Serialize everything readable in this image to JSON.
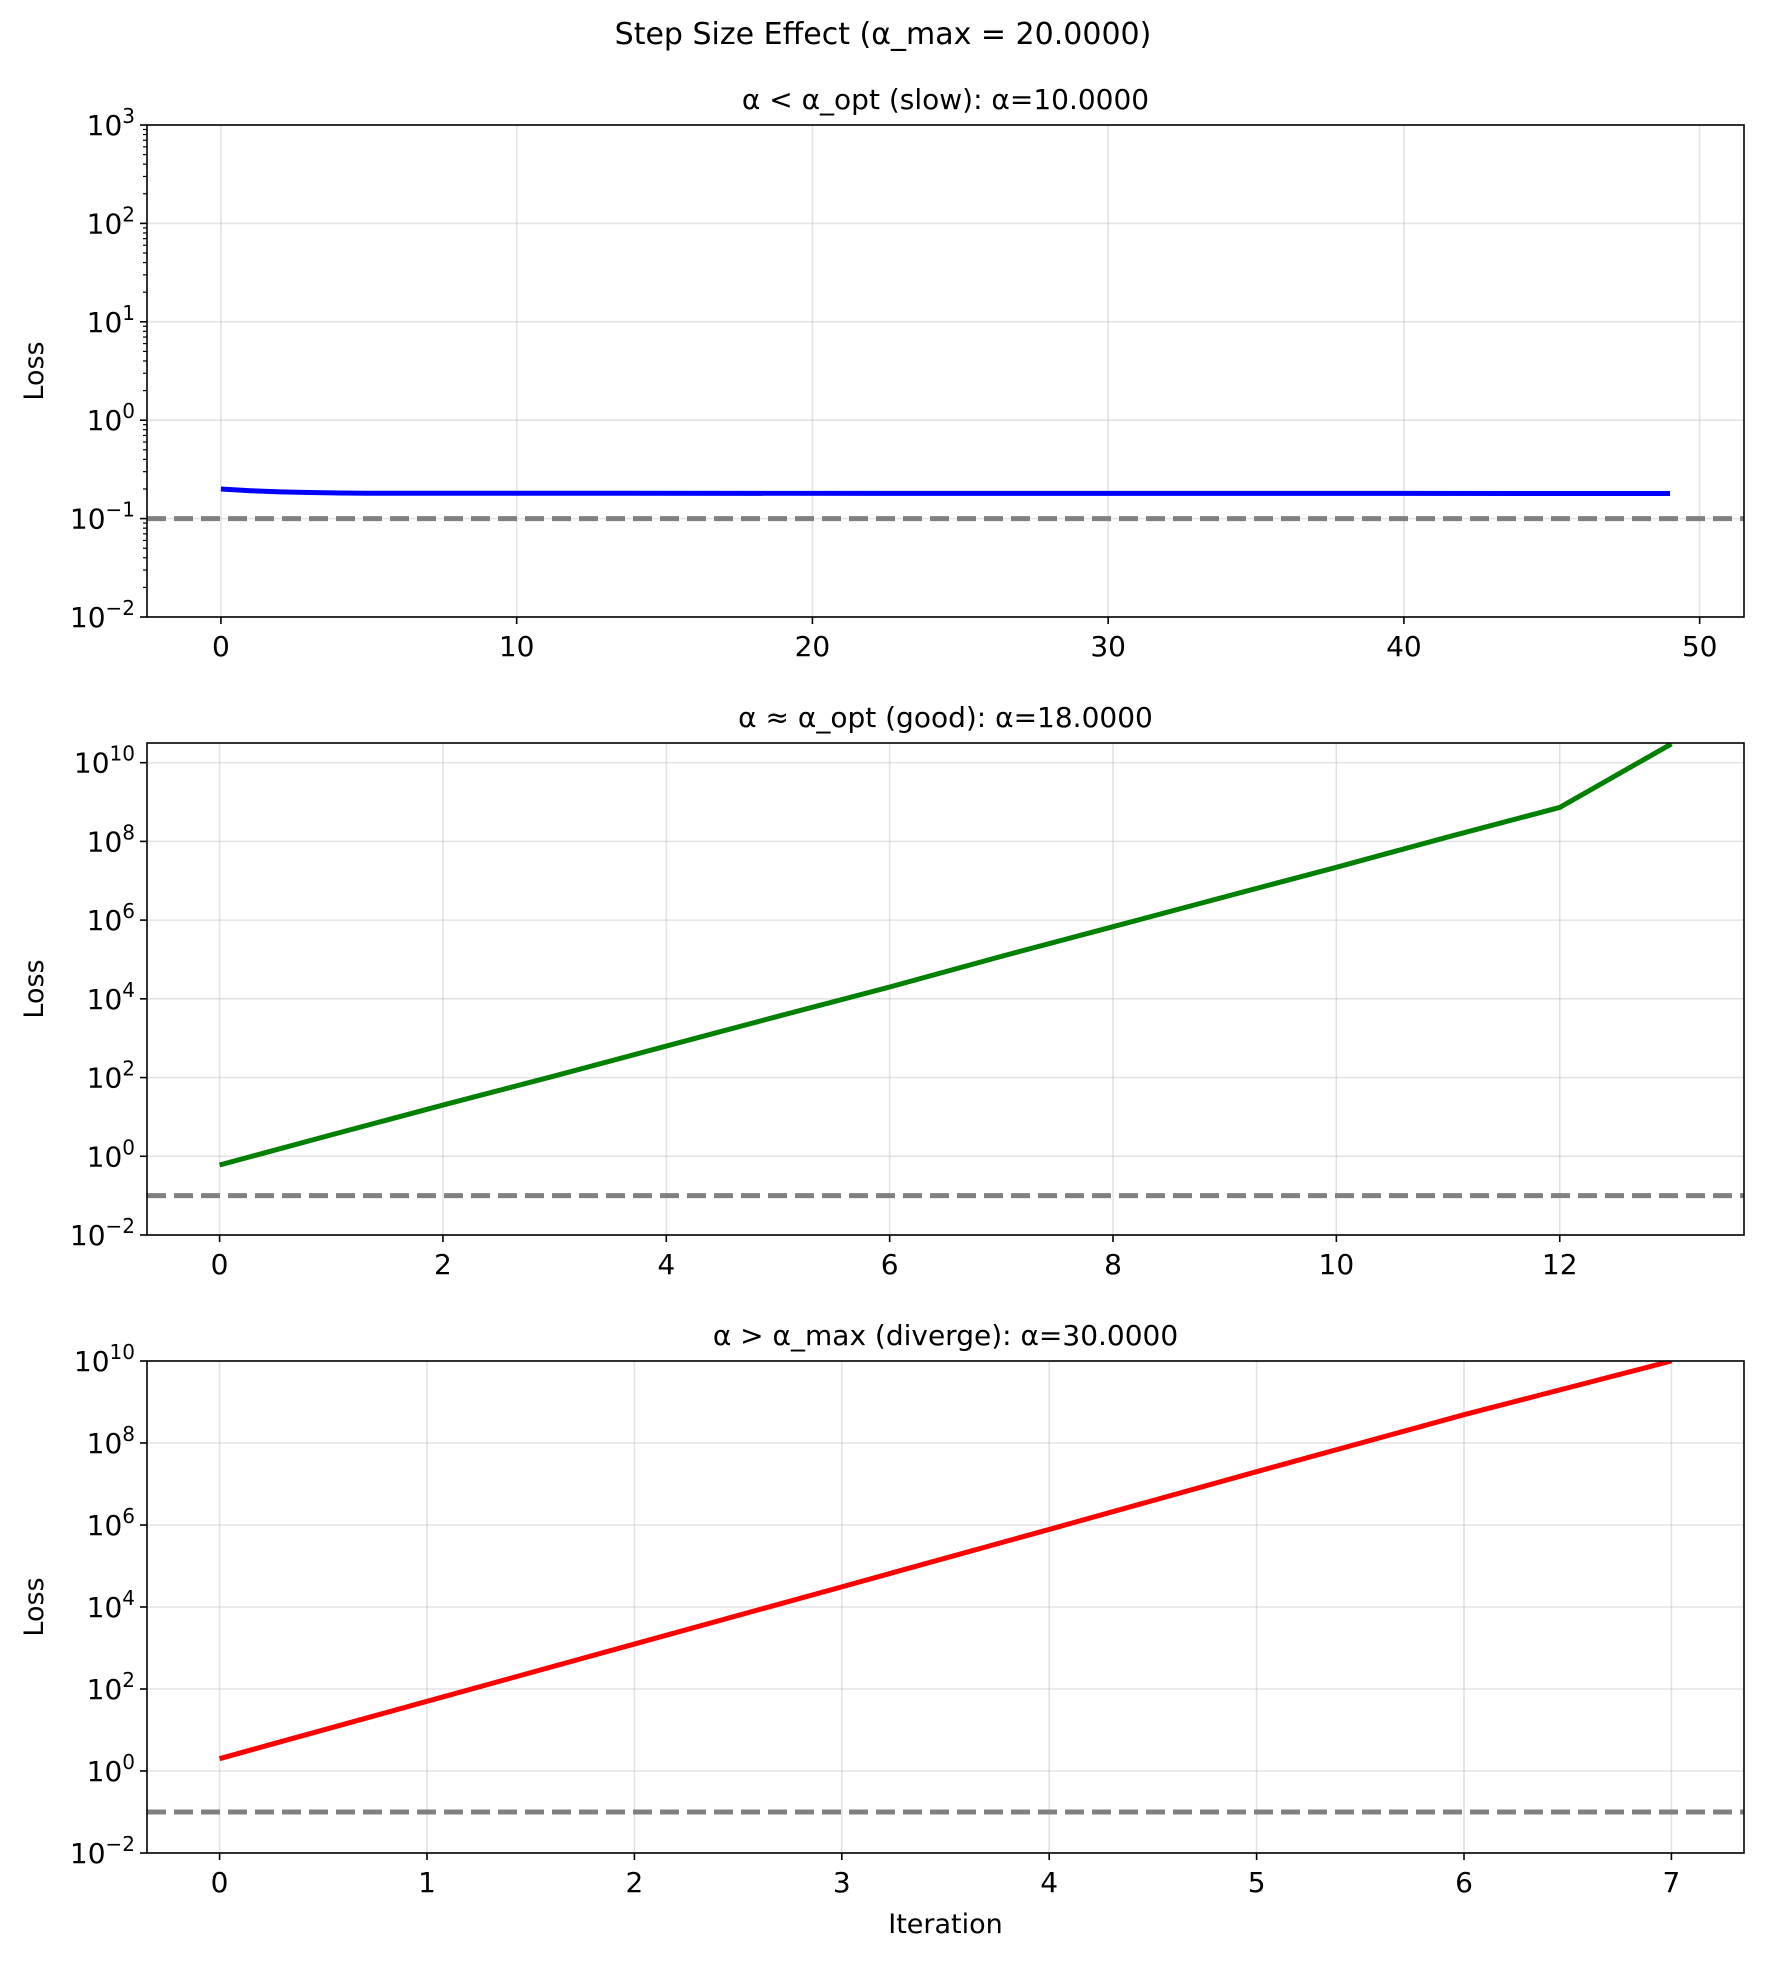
{
  "figure": {
    "title": "Step Size Effect (α_max = 20.0000)"
  },
  "chart_data": [
    {
      "type": "line",
      "title": "α < α_opt (slow): α=10.0000",
      "xlabel": "",
      "ylabel": "Loss",
      "yscale": "log",
      "xlim": [
        -2.5,
        51.5
      ],
      "ylim_exp": [
        -2,
        3
      ],
      "x_ticks": [
        0,
        10,
        20,
        30,
        40,
        50
      ],
      "y_ticks": [
        {
          "base": "10",
          "exp": "−2",
          "e": -2
        },
        {
          "base": "10",
          "exp": "−1",
          "e": -1
        },
        {
          "base": "10",
          "exp": "0",
          "e": 0
        },
        {
          "base": "10",
          "exp": "1",
          "e": 1
        },
        {
          "base": "10",
          "exp": "2",
          "e": 2
        },
        {
          "base": "10",
          "exp": "3",
          "e": 3
        }
      ],
      "minor_ticks": true,
      "grid": true,
      "reference_line": {
        "value": 0.1,
        "style": "dashed",
        "color": "#808080"
      },
      "series": [
        {
          "color": "#0000ff",
          "x": [
            0,
            1,
            2,
            3,
            4,
            5,
            49
          ],
          "y": [
            0.2,
            0.192,
            0.187,
            0.184,
            0.182,
            0.181,
            0.18
          ]
        }
      ]
    },
    {
      "type": "line",
      "title": "α ≈ α_opt (good): α=18.0000",
      "xlabel": "",
      "ylabel": "Loss",
      "yscale": "log",
      "xlim": [
        -0.65,
        13.65
      ],
      "ylim_exp": [
        -2,
        10.5
      ],
      "x_ticks": [
        0,
        2,
        4,
        6,
        8,
        10,
        12
      ],
      "y_ticks": [
        {
          "base": "10",
          "exp": "−2",
          "e": -2
        },
        {
          "base": "10",
          "exp": "0",
          "e": 0
        },
        {
          "base": "10",
          "exp": "2",
          "e": 2
        },
        {
          "base": "10",
          "exp": "4",
          "e": 4
        },
        {
          "base": "10",
          "exp": "6",
          "e": 6
        },
        {
          "base": "10",
          "exp": "8",
          "e": 8
        },
        {
          "base": "10",
          "exp": "10",
          "e": 10
        }
      ],
      "minor_ticks": false,
      "grid": true,
      "reference_line": {
        "value": 0.1,
        "style": "dashed",
        "color": "#808080"
      },
      "series": [
        {
          "color": "#008000",
          "x": [
            0,
            1,
            2,
            3,
            4,
            5,
            6,
            7,
            8,
            9,
            10,
            11,
            12,
            13
          ],
          "y": [
            0.6,
            3.5,
            20,
            110,
            630,
            3600,
            20000,
            120000,
            680000,
            3900000,
            22000000,
            130000000,
            730000000,
            30000000000
          ]
        }
      ]
    },
    {
      "type": "line",
      "title": "α > α_max (diverge): α=30.0000",
      "xlabel": "Iteration",
      "ylabel": "Loss",
      "yscale": "log",
      "xlim": [
        -0.35,
        7.35
      ],
      "ylim_exp": [
        -2,
        10
      ],
      "x_ticks": [
        0,
        1,
        2,
        3,
        4,
        5,
        6,
        7
      ],
      "y_ticks": [
        {
          "base": "10",
          "exp": "−2",
          "e": -2
        },
        {
          "base": "10",
          "exp": "0",
          "e": 0
        },
        {
          "base": "10",
          "exp": "2",
          "e": 2
        },
        {
          "base": "10",
          "exp": "4",
          "e": 4
        },
        {
          "base": "10",
          "exp": "6",
          "e": 6
        },
        {
          "base": "10",
          "exp": "8",
          "e": 8
        },
        {
          "base": "10",
          "exp": "10",
          "e": 10
        }
      ],
      "minor_ticks": false,
      "grid": true,
      "reference_line": {
        "value": 0.1,
        "style": "dashed",
        "color": "#808080"
      },
      "series": [
        {
          "color": "#ff0000",
          "x": [
            0,
            1,
            2,
            3,
            4,
            5,
            6,
            7
          ],
          "y": [
            2,
            50,
            1250,
            31000,
            780000,
            20000000,
            490000000,
            10000000000
          ]
        }
      ]
    }
  ]
}
